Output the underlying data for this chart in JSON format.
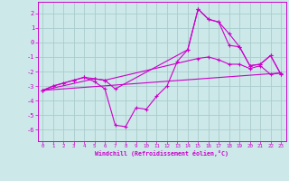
{
  "xlabel": "Windchill (Refroidissement éolien,°C)",
  "bg_color": "#cce8e8",
  "grid_color": "#aacccc",
  "line_color": "#cc00cc",
  "xlim": [
    -0.5,
    23.5
  ],
  "ylim": [
    -6.8,
    2.8
  ],
  "yticks": [
    2,
    1,
    0,
    -1,
    -2,
    -3,
    -4,
    -5,
    -6
  ],
  "xticks": [
    0,
    1,
    2,
    3,
    4,
    5,
    6,
    7,
    8,
    9,
    10,
    11,
    12,
    13,
    14,
    15,
    16,
    17,
    18,
    19,
    20,
    21,
    22,
    23
  ],
  "series": [
    {
      "x": [
        0,
        23
      ],
      "y": [
        -3.3,
        -2.1
      ]
    },
    {
      "x": [
        0,
        1,
        2,
        3,
        4,
        5,
        6,
        7,
        8,
        9,
        10,
        11,
        12,
        13,
        14,
        15,
        16,
        17,
        18,
        19,
        20,
        21,
        22,
        23
      ],
      "y": [
        -3.3,
        -3.0,
        -2.8,
        -2.6,
        -2.4,
        -2.7,
        -3.2,
        -5.7,
        -5.8,
        -4.5,
        -4.6,
        -3.7,
        -3.0,
        -1.3,
        -0.5,
        2.3,
        1.6,
        1.4,
        -0.2,
        -0.3,
        -1.6,
        -1.5,
        -0.9,
        -2.2
      ],
      "markers": true
    },
    {
      "x": [
        0,
        1,
        2,
        3,
        4,
        5,
        6,
        15,
        16,
        17,
        18,
        19,
        20,
        21,
        22,
        23
      ],
      "y": [
        -3.3,
        -3.0,
        -2.8,
        -2.6,
        -2.4,
        -2.5,
        -2.6,
        -1.1,
        -1.0,
        -1.2,
        -1.5,
        -1.5,
        -1.8,
        -1.6,
        -2.2,
        -2.1
      ],
      "markers": true
    },
    {
      "x": [
        0,
        5,
        6,
        7,
        14,
        15,
        16,
        17,
        18,
        19,
        20,
        21,
        22,
        23
      ],
      "y": [
        -3.3,
        -2.5,
        -2.6,
        -3.2,
        -0.5,
        2.3,
        1.6,
        1.4,
        0.6,
        -0.3,
        -1.6,
        -1.5,
        -0.9,
        -2.2
      ],
      "markers": true
    }
  ]
}
